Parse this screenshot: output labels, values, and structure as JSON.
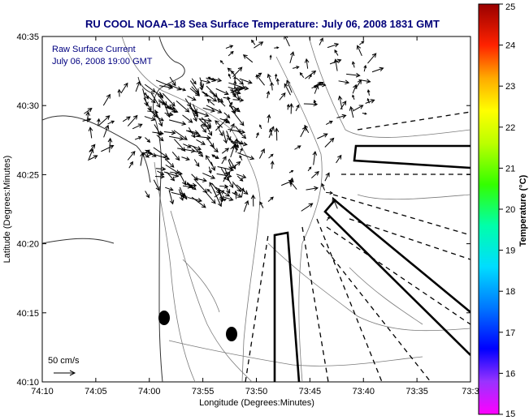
{
  "chart_data": {
    "type": "vector-map",
    "title": "RU COOL  NOAA–18  Sea Surface Temperature:  July 06, 2008 1831 GMT",
    "annotation_lines": [
      "Raw Surface Current",
      "July 06, 2008 19:00 GMT"
    ],
    "xlabel": "Longitude (Degrees:Minutes)",
    "ylabel": "Latitude (Degrees:Minutes)",
    "x_ticks": [
      "74:10",
      "74:05",
      "74:00",
      "73:55",
      "73:50",
      "73:45",
      "73:40",
      "73:35",
      "73:3"
    ],
    "y_ticks": [
      "40:35",
      "40:30",
      "40:25",
      "40:20",
      "40:15",
      "40:10"
    ],
    "xlim_min": [
      -74.1667,
      -73.5
    ],
    "ylim_min": [
      40.1667,
      40.5833
    ],
    "scale_label": "50 cm/s",
    "colorbar": {
      "label": "Temperature (°C)",
      "min": 15,
      "max": 25,
      "ticks": [
        "25",
        "24",
        "23",
        "22",
        "21",
        "20",
        "19",
        "18",
        "17",
        "16",
        "15"
      ]
    },
    "grid": false
  }
}
